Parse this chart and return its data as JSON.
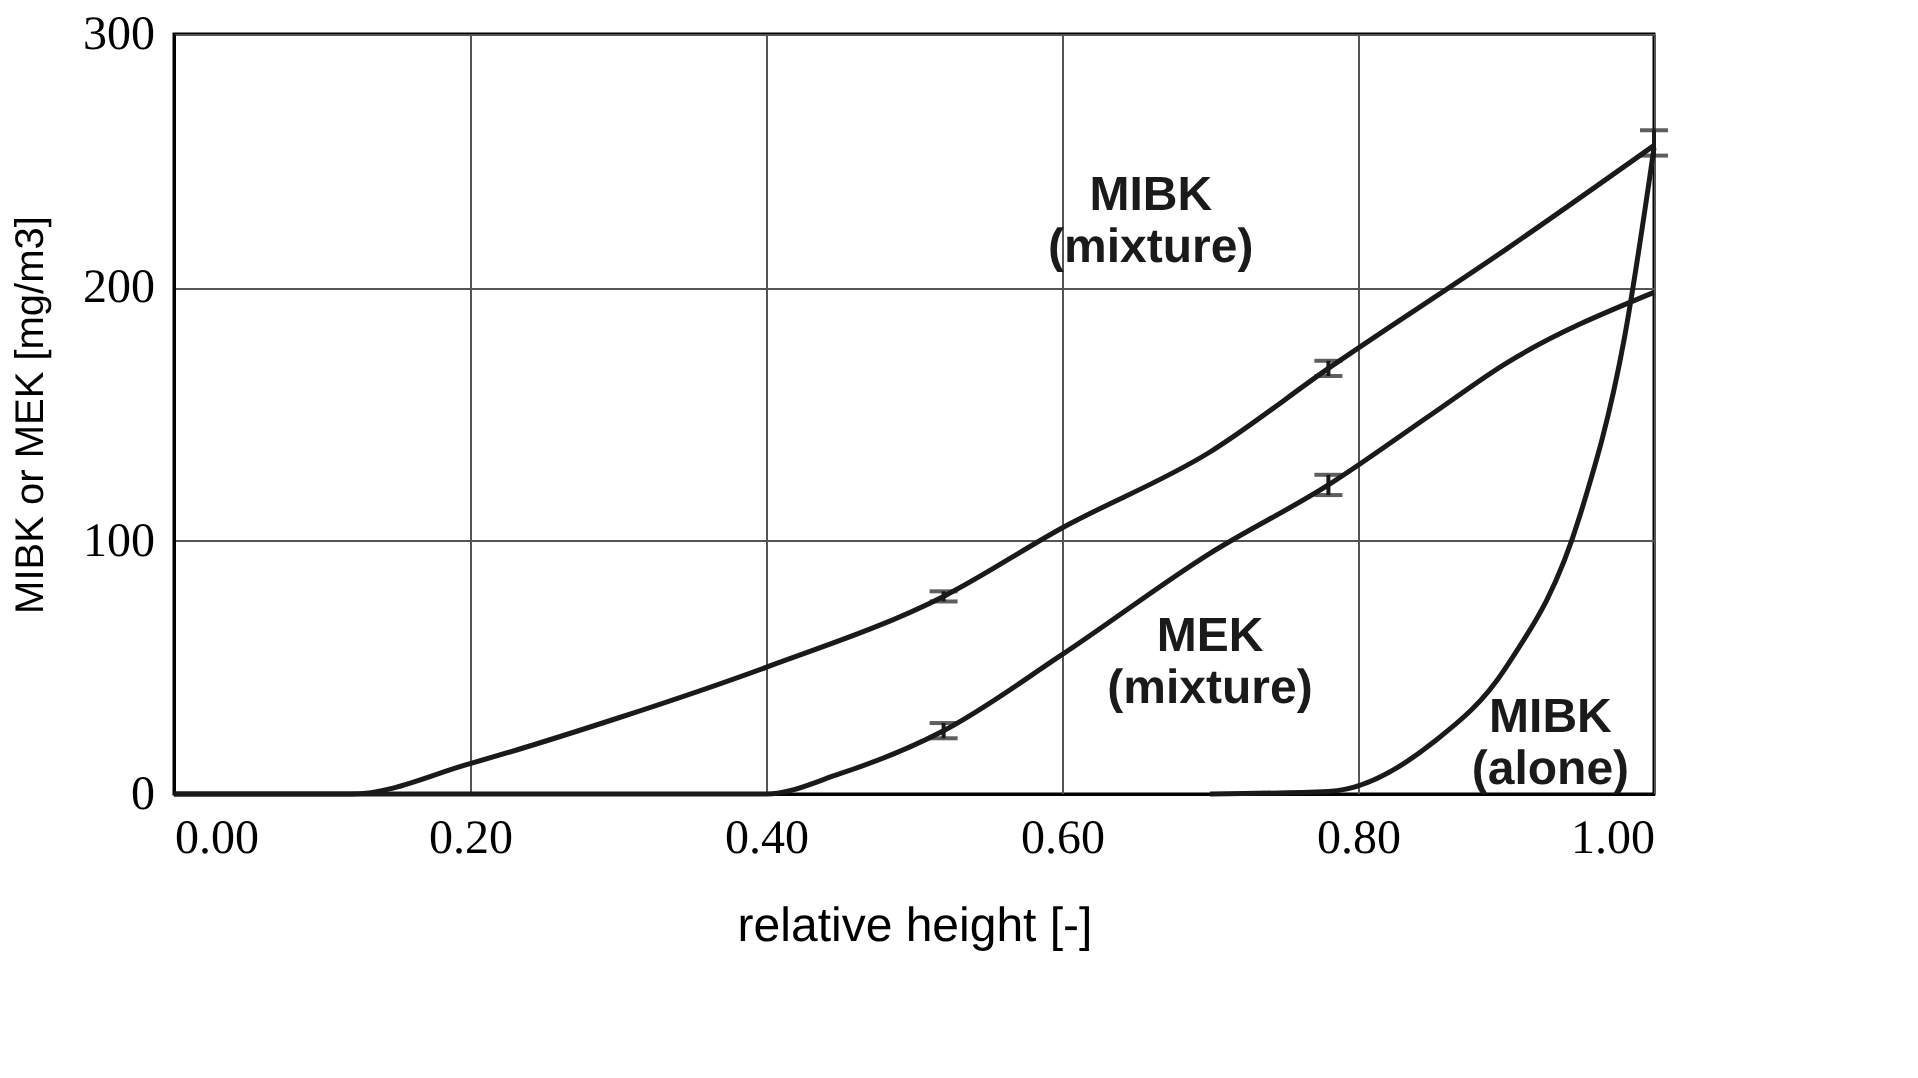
{
  "chart_data": {
    "type": "line",
    "xlabel": "relative height [-]",
    "ylabel": "MIBK or MEK [mg/m3]",
    "xlim": [
      0,
      1
    ],
    "xticks": [
      {
        "value": 0,
        "label": "0.00"
      },
      {
        "value": 0.2,
        "label": "0.20"
      },
      {
        "value": 0.4,
        "label": "0.40"
      },
      {
        "value": 0.6,
        "label": "0.60"
      },
      {
        "value": 0.8,
        "label": "0.80"
      },
      {
        "value": 1,
        "label": "1.00"
      }
    ],
    "ylim": [
      0,
      300
    ],
    "yticks": [
      0,
      100,
      200,
      300
    ],
    "grid": true,
    "legend": false,
    "marker": "none",
    "line_style": "solid",
    "series": [
      {
        "name": "MIBK (mixture)",
        "color": "#1a1a1a",
        "x": [
          0,
          0.12,
          0.2,
          0.3,
          0.4,
          0.52,
          0.6,
          0.7,
          0.78,
          0.9,
          1.0
        ],
        "values": [
          0,
          0,
          12,
          30,
          50,
          78,
          105,
          135,
          168,
          215,
          256
        ],
        "errors": [
          null,
          null,
          null,
          null,
          null,
          2,
          null,
          null,
          3,
          null,
          [
            252,
            262
          ]
        ]
      },
      {
        "name": "MEK (mixture)",
        "color": "#1a1a1a",
        "x": [
          0,
          0.4,
          0.45,
          0.52,
          0.6,
          0.7,
          0.78,
          0.85,
          0.9,
          1.0
        ],
        "values": [
          0,
          0,
          8,
          25,
          55,
          95,
          122,
          150,
          170,
          198
        ],
        "errors": [
          null,
          null,
          null,
          3,
          null,
          null,
          4,
          null,
          null,
          null
        ]
      },
      {
        "name": "MIBK (alone)",
        "color": "#1a1a1a",
        "x": [
          0.7,
          0.78,
          0.85,
          0.9,
          0.95,
          0.98,
          1.0
        ],
        "values": [
          0,
          1,
          20,
          50,
          110,
          180,
          255
        ]
      }
    ]
  }
}
